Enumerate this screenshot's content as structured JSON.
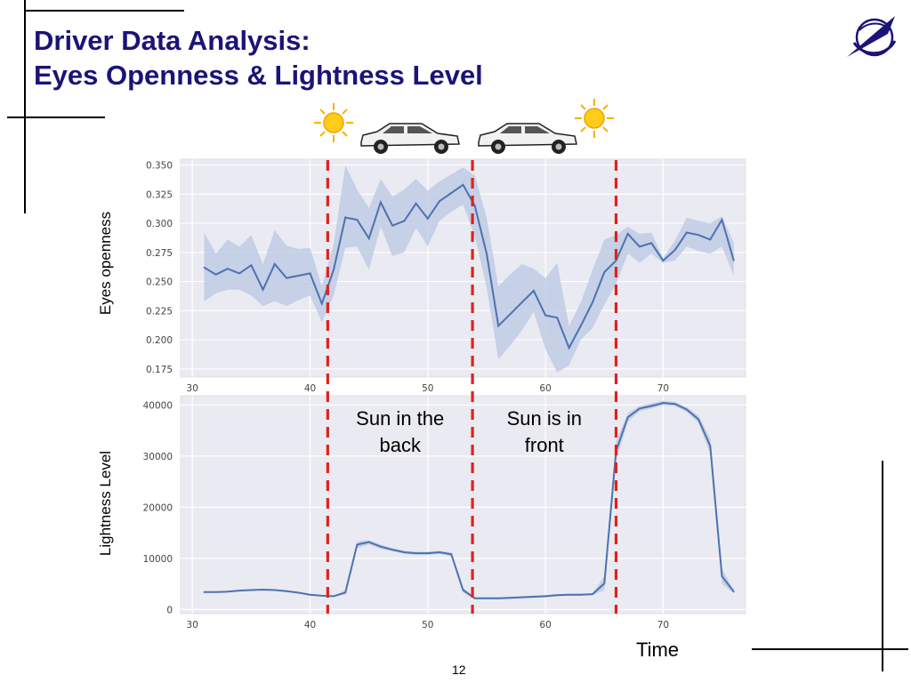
{
  "slide": {
    "title_line1": "Driver Data Analysis:",
    "title_line2": "Eyes Openness & Lightness Level",
    "page_number": "12",
    "logo": "spiiras-logo",
    "title_color": "#1a1478"
  },
  "icons": [
    "sun-icon",
    "car-icon",
    "car-icon",
    "sun-icon"
  ],
  "chart_data": [
    {
      "type": "line",
      "ylabel": "Eyes openness",
      "xlabel": "",
      "xlim": [
        29,
        77
      ],
      "ylim": [
        0.168,
        0.355
      ],
      "xticks": [
        30,
        40,
        50,
        60,
        70
      ],
      "yticks": [
        0.175,
        0.2,
        0.225,
        0.25,
        0.275,
        0.3,
        0.325,
        0.35
      ],
      "ytick_labels": [
        "0.175",
        "0.200",
        "0.225",
        "0.250",
        "0.275",
        "0.300",
        "0.325",
        "0.350"
      ],
      "grid": true,
      "series": [
        {
          "color": "#4c72b0",
          "band_color": "#b9c7e2",
          "x": [
            31,
            32,
            33,
            34,
            35,
            36,
            37,
            38,
            39,
            40,
            41,
            42,
            43,
            44,
            45,
            46,
            47,
            48,
            49,
            50,
            51,
            52,
            53,
            54,
            55,
            56,
            57,
            58,
            59,
            60,
            61,
            62,
            63,
            64,
            65,
            66,
            67,
            68,
            69,
            70,
            71,
            72,
            73,
            74,
            75,
            76
          ],
          "y": [
            0.262,
            0.256,
            0.261,
            0.257,
            0.264,
            0.243,
            0.265,
            0.253,
            0.255,
            0.257,
            0.231,
            0.26,
            0.305,
            0.303,
            0.287,
            0.318,
            0.298,
            0.302,
            0.317,
            0.304,
            0.319,
            0.326,
            0.333,
            0.315,
            0.274,
            0.212,
            0.222,
            0.232,
            0.242,
            0.221,
            0.219,
            0.193,
            0.212,
            0.232,
            0.258,
            0.268,
            0.291,
            0.28,
            0.283,
            0.268,
            0.277,
            0.292,
            0.29,
            0.286,
            0.303,
            0.268
          ],
          "lower": [
            0.233,
            0.24,
            0.243,
            0.243,
            0.238,
            0.229,
            0.233,
            0.229,
            0.234,
            0.238,
            0.215,
            0.238,
            0.279,
            0.28,
            0.26,
            0.297,
            0.272,
            0.275,
            0.296,
            0.28,
            0.302,
            0.31,
            0.316,
            0.289,
            0.245,
            0.183,
            0.195,
            0.208,
            0.224,
            0.192,
            0.172,
            0.178,
            0.2,
            0.21,
            0.23,
            0.248,
            0.274,
            0.266,
            0.274,
            0.266,
            0.268,
            0.28,
            0.276,
            0.274,
            0.28,
            0.255
          ],
          "upper": [
            0.292,
            0.274,
            0.286,
            0.28,
            0.29,
            0.265,
            0.294,
            0.281,
            0.278,
            0.279,
            0.246,
            0.282,
            0.35,
            0.329,
            0.313,
            0.338,
            0.323,
            0.329,
            0.338,
            0.328,
            0.336,
            0.342,
            0.348,
            0.341,
            0.305,
            0.246,
            0.256,
            0.265,
            0.261,
            0.253,
            0.266,
            0.212,
            0.232,
            0.26,
            0.286,
            0.29,
            0.297,
            0.291,
            0.292,
            0.27,
            0.285,
            0.305,
            0.302,
            0.3,
            0.306,
            0.283
          ]
        }
      ]
    },
    {
      "type": "line",
      "ylabel": "Lightness Level",
      "xlabel": "Time",
      "xlim": [
        29,
        77
      ],
      "ylim": [
        -800,
        41800
      ],
      "xticks": [
        30,
        40,
        50,
        60,
        70
      ],
      "yticks": [
        0,
        10000,
        20000,
        30000,
        40000
      ],
      "grid": true,
      "series": [
        {
          "color": "#4c72b0",
          "band_color": "#b9c7e2",
          "x": [
            31,
            32,
            33,
            34,
            35,
            36,
            37,
            38,
            39,
            40,
            41,
            42,
            43,
            44,
            45,
            46,
            47,
            48,
            49,
            50,
            51,
            52,
            53,
            54,
            55,
            56,
            57,
            58,
            59,
            60,
            61,
            62,
            63,
            64,
            65,
            66,
            67,
            68,
            69,
            70,
            71,
            72,
            73,
            74,
            75,
            76
          ],
          "y": [
            3400,
            3400,
            3500,
            3700,
            3800,
            3900,
            3800,
            3600,
            3300,
            2900,
            2700,
            2600,
            3300,
            12700,
            13200,
            12300,
            11700,
            11200,
            11000,
            11000,
            11200,
            10800,
            3800,
            2200,
            2200,
            2200,
            2300,
            2400,
            2500,
            2600,
            2800,
            2900,
            2900,
            3000,
            5100,
            31000,
            37600,
            39300,
            39800,
            40400,
            40200,
            39100,
            37200,
            32000,
            6500,
            3500
          ],
          "lower": [
            3300,
            3300,
            3400,
            3600,
            3700,
            3800,
            3700,
            3500,
            3200,
            2800,
            2600,
            2500,
            3000,
            12000,
            12700,
            11900,
            11400,
            10900,
            10700,
            10700,
            10900,
            10400,
            3300,
            2000,
            2000,
            2000,
            2100,
            2200,
            2300,
            2400,
            2600,
            2700,
            2700,
            2800,
            3800,
            29000,
            36700,
            38800,
            39300,
            40000,
            39800,
            38600,
            36500,
            30500,
            5000,
            3200
          ],
          "upper": [
            3500,
            3500,
            3600,
            3800,
            3900,
            4000,
            3900,
            3700,
            3400,
            3000,
            2800,
            2700,
            3800,
            13300,
            13600,
            12700,
            12000,
            11500,
            11300,
            11300,
            11500,
            11200,
            4300,
            2400,
            2400,
            2400,
            2500,
            2600,
            2700,
            2800,
            3000,
            3100,
            3100,
            3200,
            6500,
            33000,
            38400,
            39800,
            40300,
            40800,
            40600,
            39600,
            37900,
            33500,
            8000,
            3800
          ]
        }
      ]
    }
  ],
  "separators": {
    "x": [
      41.5,
      53.8,
      66.0
    ],
    "color": "#e0221c"
  },
  "annotations": [
    {
      "line1": "Sun in the",
      "line2": "back"
    },
    {
      "line1": "Sun is in",
      "line2": "front"
    }
  ]
}
